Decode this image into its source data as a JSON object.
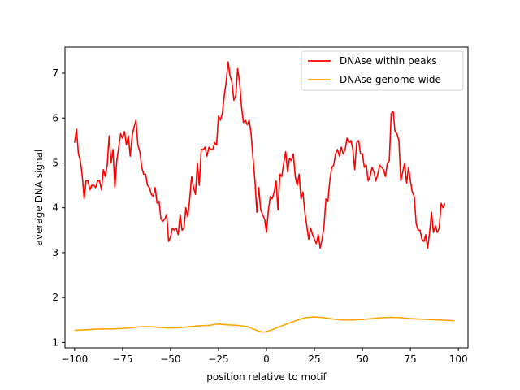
{
  "chart_data": {
    "type": "line",
    "title": "",
    "xlabel": "position relative to motif",
    "ylabel": "average DNA signal",
    "xlim": [
      -105,
      105
    ],
    "ylim": [
      0.88,
      7.58
    ],
    "xticks": [
      -100,
      -75,
      -50,
      -25,
      0,
      25,
      50,
      75,
      100
    ],
    "yticks": [
      1,
      2,
      3,
      4,
      5,
      6,
      7
    ],
    "grid": false,
    "legend_position": "top-right",
    "series": [
      {
        "name": "DNAse within peaks",
        "color": "#ff0000",
        "points": [
          [
            -100,
            5.45
          ],
          [
            -99,
            5.75
          ],
          [
            -98,
            5.2
          ],
          [
            -97,
            5.05
          ],
          [
            -96,
            4.7
          ],
          [
            -95,
            4.2
          ],
          [
            -94,
            4.6
          ],
          [
            -93,
            4.6
          ],
          [
            -92,
            4.4
          ],
          [
            -91,
            4.5
          ],
          [
            -90,
            4.5
          ],
          [
            -89,
            4.45
          ],
          [
            -88,
            4.6
          ],
          [
            -87,
            4.6
          ],
          [
            -86,
            4.4
          ],
          [
            -85,
            4.85
          ],
          [
            -84,
            4.7
          ],
          [
            -83,
            4.95
          ],
          [
            -82,
            5.6
          ],
          [
            -81,
            5.0
          ],
          [
            -80,
            5.3
          ],
          [
            -79,
            4.45
          ],
          [
            -78,
            5.05
          ],
          [
            -77,
            5.35
          ],
          [
            -76,
            5.65
          ],
          [
            -75,
            5.55
          ],
          [
            -74,
            5.7
          ],
          [
            -73,
            5.4
          ],
          [
            -72,
            5.6
          ],
          [
            -71,
            5.15
          ],
          [
            -70,
            5.6
          ],
          [
            -69,
            5.8
          ],
          [
            -68,
            5.95
          ],
          [
            -67,
            5.4
          ],
          [
            -66,
            5.25
          ],
          [
            -65,
            4.9
          ],
          [
            -64,
            4.75
          ],
          [
            -63,
            4.75
          ],
          [
            -62,
            4.5
          ],
          [
            -61,
            4.45
          ],
          [
            -60,
            4.3
          ],
          [
            -59,
            4.25
          ],
          [
            -58,
            4.45
          ],
          [
            -57,
            4.1
          ],
          [
            -56,
            4.15
          ],
          [
            -55,
            3.75
          ],
          [
            -54,
            3.7
          ],
          [
            -53,
            3.75
          ],
          [
            -52,
            3.85
          ],
          [
            -51,
            3.25
          ],
          [
            -50,
            3.35
          ],
          [
            -49,
            3.55
          ],
          [
            -48,
            3.5
          ],
          [
            -47,
            3.55
          ],
          [
            -46,
            3.4
          ],
          [
            -45,
            3.85
          ],
          [
            -44,
            3.5
          ],
          [
            -43,
            3.55
          ],
          [
            -42,
            4.0
          ],
          [
            -41,
            3.8
          ],
          [
            -40,
            4.2
          ],
          [
            -39,
            4.7
          ],
          [
            -38,
            4.45
          ],
          [
            -37,
            4.3
          ],
          [
            -36,
            5.0
          ],
          [
            -35,
            4.5
          ],
          [
            -34,
            5.3
          ],
          [
            -33,
            5.3
          ],
          [
            -32,
            5.35
          ],
          [
            -31,
            5.15
          ],
          [
            -30,
            5.35
          ],
          [
            -29,
            5.3
          ],
          [
            -28,
            5.3
          ],
          [
            -27,
            5.45
          ],
          [
            -26,
            5.4
          ],
          [
            -25,
            6.05
          ],
          [
            -24,
            5.95
          ],
          [
            -23,
            6.1
          ],
          [
            -22,
            6.5
          ],
          [
            -21,
            6.8
          ],
          [
            -20,
            7.25
          ],
          [
            -19,
            6.95
          ],
          [
            -18,
            6.8
          ],
          [
            -17,
            6.4
          ],
          [
            -16,
            6.5
          ],
          [
            -15,
            7.1
          ],
          [
            -14,
            6.8
          ],
          [
            -13,
            6.25
          ],
          [
            -12,
            5.9
          ],
          [
            -11,
            5.95
          ],
          [
            -10,
            5.85
          ],
          [
            -9,
            5.95
          ],
          [
            -8,
            5.65
          ],
          [
            -7,
            5.1
          ],
          [
            -6,
            4.6
          ],
          [
            -5,
            3.9
          ],
          [
            -4,
            4.45
          ],
          [
            -3,
            3.95
          ],
          [
            -2,
            3.85
          ],
          [
            -1,
            3.75
          ],
          [
            0,
            3.45
          ],
          [
            1,
            3.95
          ],
          [
            2,
            4.25
          ],
          [
            3,
            4.2
          ],
          [
            4,
            4.35
          ],
          [
            5,
            4.6
          ],
          [
            6,
            3.95
          ],
          [
            7,
            4.75
          ],
          [
            8,
            4.7
          ],
          [
            9,
            5.0
          ],
          [
            10,
            5.25
          ],
          [
            11,
            4.8
          ],
          [
            12,
            5.1
          ],
          [
            13,
            5.05
          ],
          [
            14,
            5.2
          ],
          [
            15,
            4.7
          ],
          [
            16,
            4.5
          ],
          [
            17,
            4.75
          ],
          [
            18,
            4.2
          ],
          [
            19,
            4.35
          ],
          [
            20,
            3.9
          ],
          [
            21,
            3.6
          ],
          [
            22,
            3.3
          ],
          [
            23,
            3.55
          ],
          [
            24,
            3.4
          ],
          [
            25,
            3.3
          ],
          [
            26,
            3.2
          ],
          [
            27,
            3.4
          ],
          [
            28,
            3.1
          ],
          [
            29,
            3.3
          ],
          [
            30,
            3.6
          ],
          [
            31,
            4.2
          ],
          [
            32,
            4.15
          ],
          [
            33,
            4.6
          ],
          [
            34,
            4.9
          ],
          [
            35,
            4.95
          ],
          [
            36,
            5.2
          ],
          [
            37,
            5.3
          ],
          [
            38,
            5.15
          ],
          [
            39,
            5.35
          ],
          [
            40,
            5.2
          ],
          [
            41,
            5.3
          ],
          [
            42,
            5.55
          ],
          [
            43,
            5.45
          ],
          [
            44,
            5.5
          ],
          [
            45,
            5.3
          ],
          [
            46,
            4.85
          ],
          [
            47,
            5.45
          ],
          [
            48,
            5.5
          ],
          [
            49,
            5.2
          ],
          [
            50,
            5.2
          ],
          [
            51,
            4.9
          ],
          [
            52,
            4.95
          ],
          [
            53,
            4.6
          ],
          [
            54,
            4.7
          ],
          [
            55,
            4.9
          ],
          [
            56,
            4.8
          ],
          [
            57,
            4.6
          ],
          [
            58,
            4.75
          ],
          [
            59,
            4.95
          ],
          [
            60,
            4.9
          ],
          [
            61,
            4.85
          ],
          [
            62,
            4.7
          ],
          [
            63,
            5.0
          ],
          [
            64,
            5.05
          ],
          [
            65,
            6.1
          ],
          [
            66,
            6.15
          ],
          [
            67,
            5.7
          ],
          [
            68,
            5.65
          ],
          [
            69,
            5.5
          ],
          [
            70,
            4.6
          ],
          [
            71,
            4.8
          ],
          [
            72,
            5.0
          ],
          [
            73,
            4.55
          ],
          [
            74,
            4.9
          ],
          [
            75,
            4.6
          ],
          [
            76,
            4.35
          ],
          [
            77,
            4.25
          ],
          [
            78,
            3.65
          ],
          [
            79,
            3.5
          ],
          [
            80,
            3.5
          ],
          [
            81,
            3.3
          ],
          [
            82,
            3.25
          ],
          [
            83,
            3.4
          ],
          [
            84,
            3.1
          ],
          [
            85,
            3.45
          ],
          [
            86,
            3.9
          ],
          [
            87,
            3.45
          ],
          [
            88,
            3.6
          ],
          [
            89,
            3.45
          ],
          [
            90,
            3.55
          ],
          [
            91,
            4.1
          ],
          [
            92,
            4.0
          ],
          [
            93,
            4.1
          ]
        ]
      },
      {
        "name": "DNAse genome wide",
        "color": "#ffa500",
        "points": [
          [
            -100,
            1.27
          ],
          [
            -95,
            1.28
          ],
          [
            -90,
            1.29
          ],
          [
            -85,
            1.3
          ],
          [
            -80,
            1.3
          ],
          [
            -75,
            1.31
          ],
          [
            -70,
            1.33
          ],
          [
            -65,
            1.35
          ],
          [
            -60,
            1.35
          ],
          [
            -55,
            1.33
          ],
          [
            -50,
            1.32
          ],
          [
            -45,
            1.33
          ],
          [
            -40,
            1.35
          ],
          [
            -35,
            1.37
          ],
          [
            -30,
            1.38
          ],
          [
            -25,
            1.41
          ],
          [
            -20,
            1.39
          ],
          [
            -15,
            1.38
          ],
          [
            -10,
            1.35
          ],
          [
            -7,
            1.3
          ],
          [
            -4,
            1.25
          ],
          [
            -2,
            1.23
          ],
          [
            0,
            1.24
          ],
          [
            2,
            1.27
          ],
          [
            5,
            1.32
          ],
          [
            10,
            1.4
          ],
          [
            15,
            1.48
          ],
          [
            18,
            1.52
          ],
          [
            20,
            1.55
          ],
          [
            25,
            1.57
          ],
          [
            30,
            1.55
          ],
          [
            35,
            1.52
          ],
          [
            40,
            1.5
          ],
          [
            45,
            1.5
          ],
          [
            50,
            1.51
          ],
          [
            55,
            1.53
          ],
          [
            60,
            1.55
          ],
          [
            65,
            1.56
          ],
          [
            70,
            1.55
          ],
          [
            75,
            1.53
          ],
          [
            80,
            1.52
          ],
          [
            85,
            1.51
          ],
          [
            90,
            1.5
          ],
          [
            95,
            1.49
          ],
          [
            98,
            1.48
          ]
        ]
      }
    ]
  }
}
